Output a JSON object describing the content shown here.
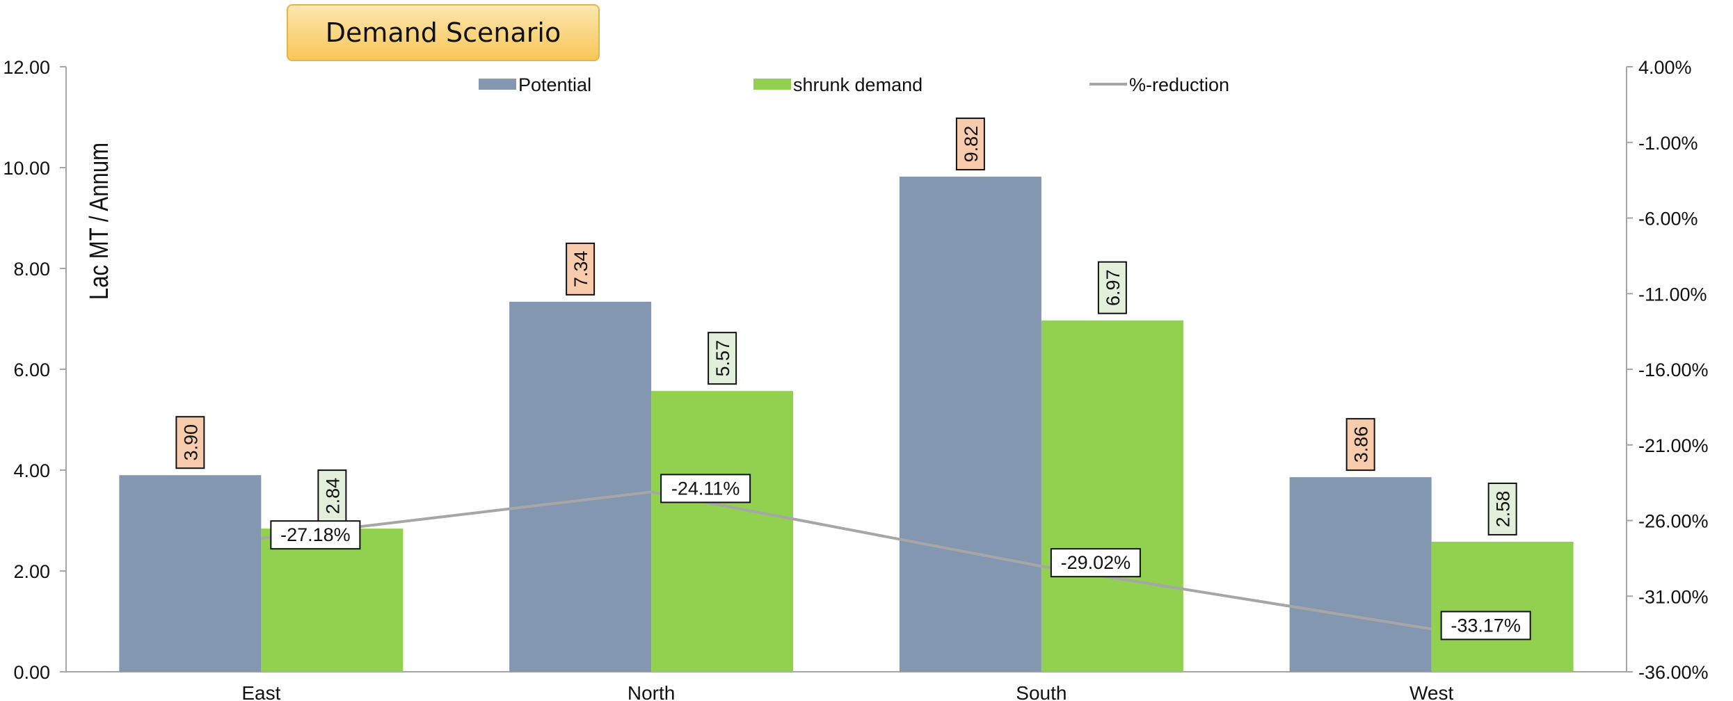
{
  "chart_data": {
    "type": "bar",
    "title": "Demand Scenario",
    "categories": [
      "East",
      "North",
      "South",
      "West"
    ],
    "series": [
      {
        "name": "Potential",
        "kind": "bar",
        "color": "#8497b0",
        "label_bg": "#f8cbad",
        "values": [
          3.9,
          7.34,
          9.82,
          3.86
        ],
        "labels": [
          "3.90",
          "7.34",
          "9.82",
          "3.86"
        ]
      },
      {
        "name": "shrunk demand",
        "kind": "bar",
        "color": "#92d050",
        "label_bg": "#e2efda",
        "values": [
          2.84,
          5.57,
          6.97,
          2.58
        ],
        "labels": [
          "2.84",
          "5.57",
          "6.97",
          "2.58"
        ]
      },
      {
        "name": "%-reduction",
        "kind": "line",
        "axis": "right",
        "color": "#a6a6a6",
        "values": [
          -27.18,
          -24.11,
          -29.02,
          -33.17
        ],
        "labels": [
          "-27.18%",
          "-24.11%",
          "-29.02%",
          "-33.17%"
        ]
      }
    ],
    "ylabel": "Lac  MT / Annum",
    "ylim": [
      0,
      12
    ],
    "yticks": [
      "0.00",
      "2.00",
      "4.00",
      "6.00",
      "8.00",
      "10.00",
      "12.00"
    ],
    "y2lim": [
      -36,
      4
    ],
    "y2ticks": [
      "-36.00%",
      "-31.00%",
      "-26.00%",
      "-21.00%",
      "-16.00%",
      "-11.00%",
      "-6.00%",
      "-1.00%",
      "4.00%"
    ],
    "legend": "top",
    "grid": false
  }
}
